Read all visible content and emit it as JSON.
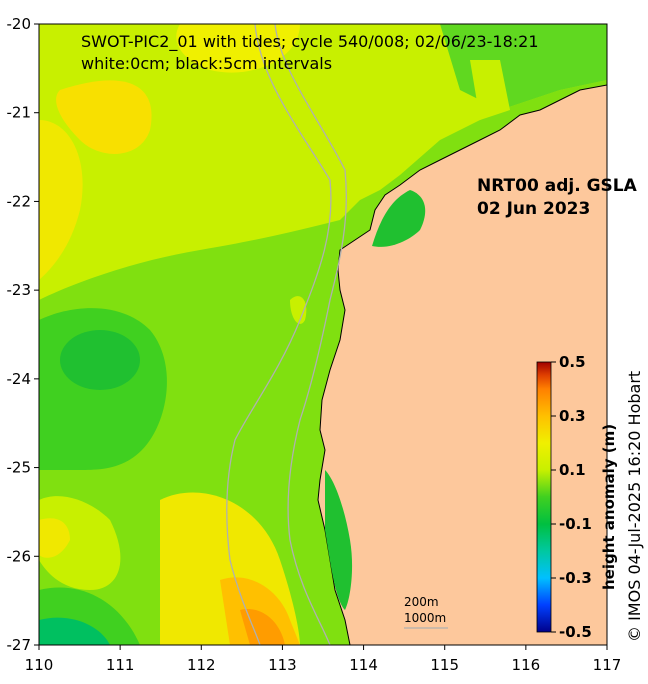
{
  "title": {
    "line1": "SWOT-PIC2_01 with tides; cycle 540/008; 02/06/23-18:21",
    "line2": "white:0cm; black:5cm intervals"
  },
  "product": {
    "line1": "NRT00 adj. GSLA",
    "line2": "02 Jun 2023"
  },
  "credit": "© IMOS 04-Jul-2025 16:20 Hobart",
  "axes": {
    "x_ticks": [
      "110",
      "111",
      "112",
      "113",
      "114",
      "115",
      "116",
      "117"
    ],
    "y_ticks": [
      "-20",
      "-21",
      "-22",
      "-23",
      "-24",
      "-25",
      "-26",
      "-27"
    ],
    "xlim": [
      110,
      117
    ],
    "ylim": [
      -27,
      -20
    ]
  },
  "colorbar": {
    "title": "height anomaly (m)",
    "ticks": [
      "0.5",
      "0.3",
      "0.1",
      "-0.1",
      "-0.3",
      "-0.5"
    ],
    "range": [
      -0.5,
      0.5
    ],
    "colors": [
      "#00008b",
      "#0040ff",
      "#00c0ff",
      "#00c8a0",
      "#00c040",
      "#40d020",
      "#c8f000",
      "#f0f000",
      "#ffc000",
      "#ff8000",
      "#e04000",
      "#a00000"
    ]
  },
  "scale": {
    "contour1": "200m",
    "contour2": "1000m"
  },
  "colors": {
    "land": "#fdc89c",
    "bathymetry": "#b0b0b0",
    "coastline": "#000000"
  }
}
